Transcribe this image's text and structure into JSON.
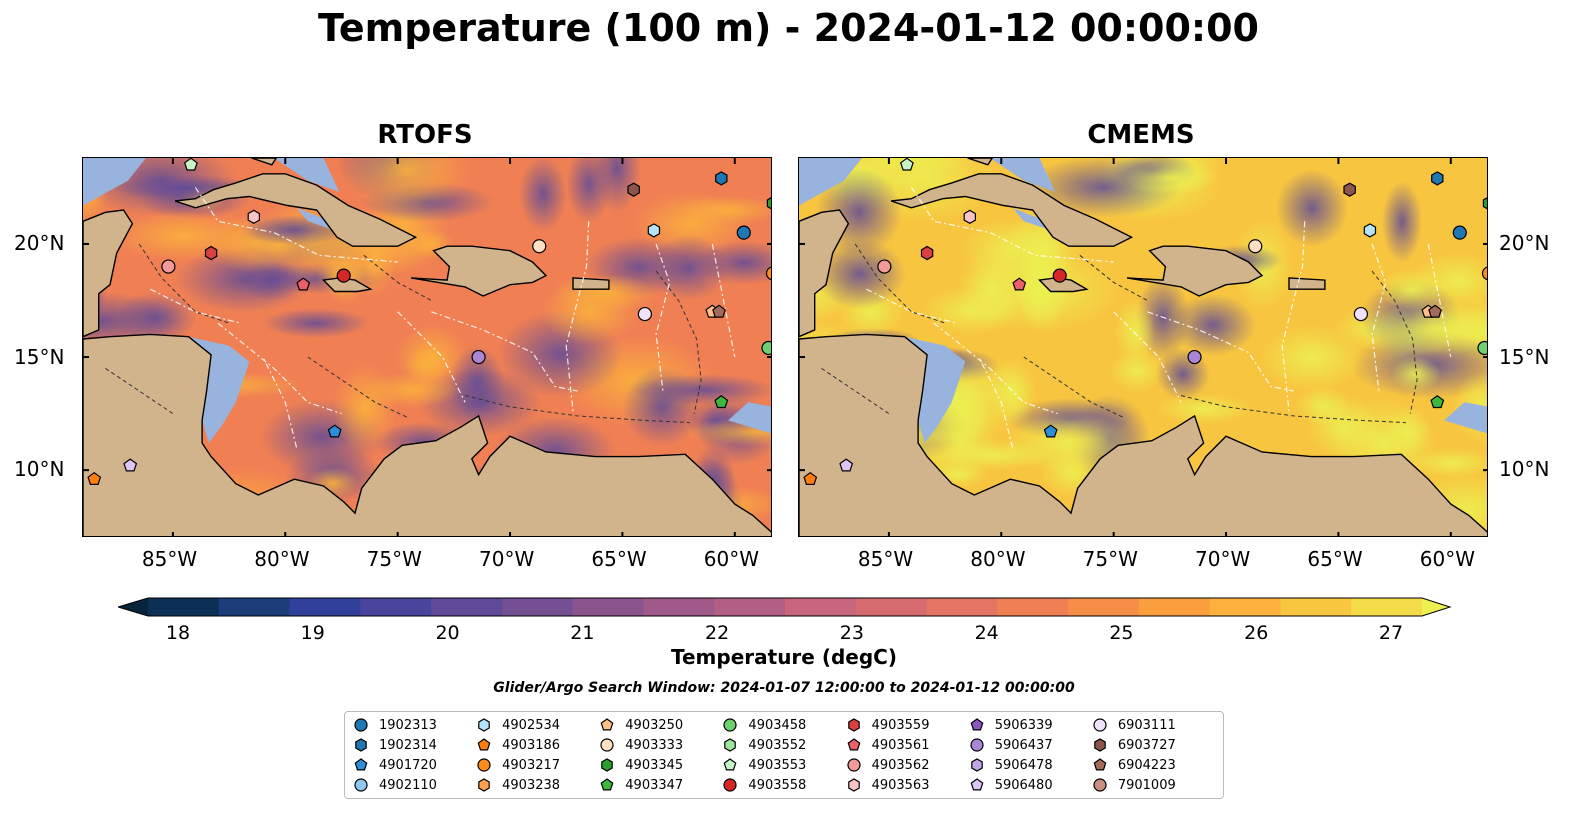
{
  "figure": {
    "title": "Temperature (100 m) - 2024-01-12 00:00:00",
    "panels": [
      {
        "title": "RTOFS"
      },
      {
        "title": "CMEMS"
      }
    ],
    "lon_ticks": [
      "85°W",
      "80°W",
      "75°W",
      "70°W",
      "65°W",
      "60°W"
    ],
    "lat_ticks": [
      "20°N",
      "15°N",
      "10°N"
    ],
    "colorbar": {
      "label": "Temperature (degC)",
      "ticks": [
        "18",
        "19",
        "20",
        "21",
        "22",
        "23",
        "24",
        "25",
        "26",
        "27"
      ],
      "range": [
        18,
        27
      ],
      "colors": [
        "#06243a",
        "#0c2f55",
        "#1c3d7a",
        "#2f3f9a",
        "#49449c",
        "#5e4a98",
        "#744f93",
        "#8a548f",
        "#9f5a8a",
        "#b35f84",
        "#c6657c",
        "#d76c70",
        "#e57563",
        "#f08054",
        "#f78e47",
        "#fa9e3e",
        "#fbb13c",
        "#f9c63f",
        "#f4dc48",
        "#ecf050"
      ]
    },
    "search_window": "Glider/Argo Search Window: 2024-01-07 12:00:00 to 2024-01-12 00:00:00",
    "land_color": "#d2b48c",
    "shallow_color": "#98b4de",
    "legend": [
      {
        "id": "1902313",
        "color": "#1f77b4",
        "marker": "circle"
      },
      {
        "id": "1902314",
        "color": "#1f77b4",
        "marker": "hexagon"
      },
      {
        "id": "4901720",
        "color": "#2c8fd6",
        "marker": "pentagon"
      },
      {
        "id": "4902110",
        "color": "#8ec7f0",
        "marker": "circle"
      },
      {
        "id": "4902534",
        "color": "#b5e3f7",
        "marker": "hexagon"
      },
      {
        "id": "4903186",
        "color": "#ff7f0e",
        "marker": "pentagon"
      },
      {
        "id": "4903217",
        "color": "#ff8c1a",
        "marker": "circle"
      },
      {
        "id": "4903238",
        "color": "#ffa050",
        "marker": "hexagon"
      },
      {
        "id": "4903250",
        "color": "#ffc08a",
        "marker": "pentagon"
      },
      {
        "id": "4903333",
        "color": "#ffe0c2",
        "marker": "circle"
      },
      {
        "id": "4903345",
        "color": "#2ca02c",
        "marker": "hexagon"
      },
      {
        "id": "4903347",
        "color": "#3cb83c",
        "marker": "pentagon"
      },
      {
        "id": "4903458",
        "color": "#6ed06e",
        "marker": "circle"
      },
      {
        "id": "4903552",
        "color": "#9de69d",
        "marker": "hexagon"
      },
      {
        "id": "4903553",
        "color": "#c8f5c8",
        "marker": "pentagon"
      },
      {
        "id": "4903558",
        "color": "#d62728",
        "marker": "circle"
      },
      {
        "id": "4903559",
        "color": "#d94040",
        "marker": "hexagon"
      },
      {
        "id": "4903561",
        "color": "#e8606a",
        "marker": "pentagon"
      },
      {
        "id": "4903562",
        "color": "#f29a9a",
        "marker": "circle"
      },
      {
        "id": "4903563",
        "color": "#fbc4c4",
        "marker": "hexagon"
      },
      {
        "id": "5906339",
        "color": "#8a56c2",
        "marker": "pentagon"
      },
      {
        "id": "5906437",
        "color": "#a987d6",
        "marker": "circle"
      },
      {
        "id": "5906478",
        "color": "#c3a6e6",
        "marker": "hexagon"
      },
      {
        "id": "5906480",
        "color": "#dcc6f5",
        "marker": "pentagon"
      },
      {
        "id": "6903111",
        "color": "#f0e2fb",
        "marker": "circle"
      },
      {
        "id": "6903727",
        "color": "#8c564b",
        "marker": "hexagon"
      },
      {
        "id": "6904223",
        "color": "#a46a5c",
        "marker": "pentagon"
      },
      {
        "id": "7901009",
        "color": "#c98f80",
        "marker": "circle"
      }
    ],
    "floats_on_map": [
      {
        "id": "1902313",
        "lon": -59.6,
        "lat": 20.5
      },
      {
        "id": "1902314",
        "lon": -60.6,
        "lat": 22.9
      },
      {
        "id": "4901720",
        "lon": -77.8,
        "lat": 11.7
      },
      {
        "id": "4902534",
        "lon": -63.6,
        "lat": 20.6
      },
      {
        "id": "4903186",
        "lon": -88.5,
        "lat": 9.6
      },
      {
        "id": "4903217",
        "lon": -58.3,
        "lat": 18.7
      },
      {
        "id": "4903250",
        "lon": -61.0,
        "lat": 17.0
      },
      {
        "id": "4903333",
        "lon": -68.7,
        "lat": 19.9
      },
      {
        "id": "4903345",
        "lon": -58.3,
        "lat": 21.8
      },
      {
        "id": "4903347",
        "lon": -60.6,
        "lat": 13.0
      },
      {
        "id": "4903458",
        "lon": -58.5,
        "lat": 15.4
      },
      {
        "id": "4903553",
        "lon": -84.2,
        "lat": 23.5
      },
      {
        "id": "4903558",
        "lon": -77.4,
        "lat": 18.6
      },
      {
        "id": "4903559",
        "lon": -83.3,
        "lat": 19.6
      },
      {
        "id": "4903561",
        "lon": -79.2,
        "lat": 18.2
      },
      {
        "id": "4903562",
        "lon": -85.2,
        "lat": 19.0
      },
      {
        "id": "4903563",
        "lon": -81.4,
        "lat": 21.2
      },
      {
        "id": "5906437",
        "lon": -71.4,
        "lat": 15.0
      },
      {
        "id": "5906480",
        "lon": -86.9,
        "lat": 10.2
      },
      {
        "id": "6903111",
        "lon": -64.0,
        "lat": 16.9
      },
      {
        "id": "6903727",
        "lon": -64.5,
        "lat": 22.4
      },
      {
        "id": "6904223",
        "lon": -60.7,
        "lat": 17.0
      }
    ]
  }
}
